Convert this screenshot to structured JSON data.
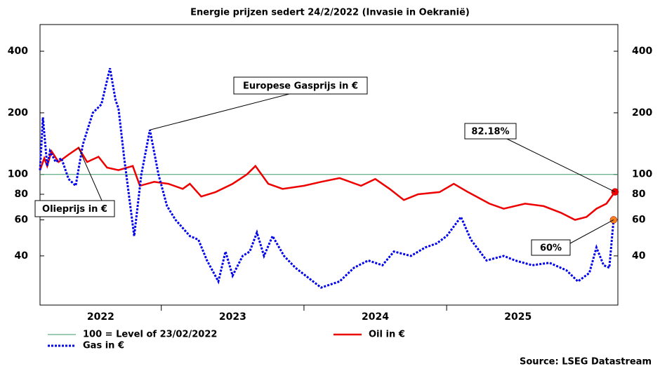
{
  "chart_data": {
    "type": "line",
    "title": "Energie prijzen sedert 24/2/2022 (Invasie in Oekranië)",
    "log_y": true,
    "xlim": [
      2022.15,
      2026.2
    ],
    "xticks": [
      {
        "value": 2022,
        "label": "2022"
      },
      {
        "value": 2023,
        "label": "2023"
      },
      {
        "value": 2024,
        "label": "2024"
      },
      {
        "value": 2025,
        "label": "2025"
      }
    ],
    "ylim": [
      23,
      540
    ],
    "yticks": [
      40,
      60,
      80,
      100,
      200,
      400
    ],
    "reference": {
      "name": "100 = Level of 23/02/2022",
      "value": 100,
      "color": "#3a9a6a"
    },
    "series": [
      {
        "name": "Oil in €",
        "color": "#ee0000",
        "x": [
          2022.15,
          2022.18,
          2022.2,
          2022.23,
          2022.28,
          2022.35,
          2022.42,
          2022.48,
          2022.56,
          2022.62,
          2022.7,
          2022.8,
          2022.85,
          2022.95,
          2023.05,
          2023.15,
          2023.2,
          2023.28,
          2023.38,
          2023.5,
          2023.6,
          2023.66,
          2023.75,
          2023.85,
          2024.0,
          2024.12,
          2024.25,
          2024.4,
          2024.5,
          2024.6,
          2024.7,
          2024.8,
          2024.95,
          2025.05,
          2025.15,
          2025.3,
          2025.4,
          2025.55,
          2025.68,
          2025.8,
          2025.9,
          2025.98,
          2026.05,
          2026.12,
          2026.18
        ],
        "values": [
          105,
          120,
          110,
          130,
          115,
          125,
          135,
          115,
          122,
          108,
          105,
          110,
          88,
          92,
          90,
          85,
          90,
          78,
          82,
          90,
          100,
          110,
          90,
          85,
          88,
          92,
          96,
          88,
          95,
          85,
          75,
          80,
          82,
          90,
          82,
          72,
          68,
          72,
          70,
          65,
          60,
          62,
          68,
          72,
          82.18
        ]
      },
      {
        "name": "Gas in €",
        "color": "#0000ee",
        "x": [
          2022.15,
          2022.17,
          2022.2,
          2022.22,
          2022.26,
          2022.3,
          2022.35,
          2022.4,
          2022.45,
          2022.52,
          2022.58,
          2022.64,
          2022.68,
          2022.7,
          2022.74,
          2022.81,
          2022.86,
          2022.92,
          2022.98,
          2023.04,
          2023.1,
          2023.2,
          2023.26,
          2023.32,
          2023.4,
          2023.45,
          2023.5,
          2023.57,
          2023.62,
          2023.67,
          2023.72,
          2023.78,
          2023.86,
          2023.94,
          2024.12,
          2024.25,
          2024.35,
          2024.45,
          2024.55,
          2024.63,
          2024.75,
          2024.85,
          2024.93,
          2025.0,
          2025.1,
          2025.17,
          2025.28,
          2025.4,
          2025.48,
          2025.6,
          2025.72,
          2025.84,
          2025.92,
          2026.0,
          2026.05,
          2026.1,
          2026.14,
          2026.17
        ],
        "values": [
          105,
          190,
          110,
          130,
          115,
          120,
          95,
          88,
          140,
          200,
          220,
          330,
          230,
          210,
          120,
          50,
          100,
          165,
          100,
          70,
          60,
          50,
          48,
          38,
          30,
          42,
          32,
          40,
          42,
          52,
          40,
          50,
          40,
          35,
          28,
          30,
          35,
          38,
          36,
          42,
          40,
          44,
          46,
          50,
          62,
          48,
          38,
          40,
          38,
          36,
          37,
          34,
          30,
          33,
          44,
          36,
          35,
          60
        ]
      }
    ],
    "annotations": [
      {
        "text": "Europese Gasprijs in €"
      },
      {
        "text": "Olieprijs in €"
      },
      {
        "text": "82.18%"
      },
      {
        "text": "60%"
      }
    ],
    "source": "Source: LSEG Datastream"
  }
}
